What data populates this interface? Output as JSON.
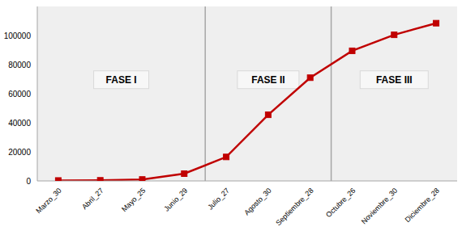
{
  "chart_data": {
    "type": "line",
    "categories": [
      "Marzo_30",
      "Abril_27",
      "Mayo_25",
      "Junio_29",
      "Julio_27",
      "Agosto_30",
      "Septiembre_28",
      "Octubre_26",
      "Noviembre_30",
      "Diciembre_28"
    ],
    "values": [
      300,
      400,
      1000,
      5000,
      16500,
      45500,
      71000,
      89500,
      100500,
      108500
    ],
    "color": "#c00000",
    "marker": "square",
    "ylim": [
      0,
      120000
    ],
    "yticks": [
      0,
      20000,
      40000,
      60000,
      80000,
      100000
    ],
    "grid": false,
    "phases": [
      {
        "label": "FASE I",
        "from": "Marzo_30",
        "to": "Junio_29"
      },
      {
        "label": "FASE II",
        "from": "Julio_27",
        "to": "Septiembre_28"
      },
      {
        "label": "FASE III",
        "from": "Octubre_26",
        "to": "Diciembre_28"
      }
    ]
  }
}
